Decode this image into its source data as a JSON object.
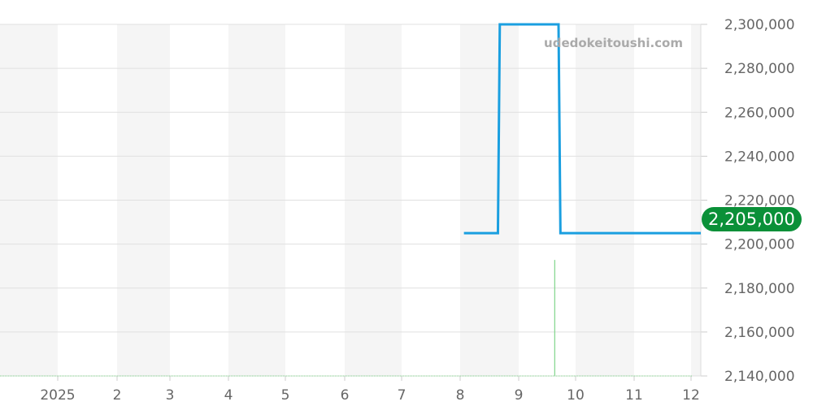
{
  "watermark": "udedokeitoushi.com",
  "current_price_label": "2,205,000",
  "chart_data": {
    "type": "line",
    "x_tick_labels": [
      "2025",
      "2",
      "3",
      "4",
      "5",
      "6",
      "7",
      "8",
      "9",
      "10",
      "11",
      "12"
    ],
    "y_tick_labels": [
      "2,300,000",
      "2,280,000",
      "2,260,000",
      "2,240,000",
      "2,220,000",
      "2,200,000",
      "2,180,000",
      "2,160,000",
      "2,140,000"
    ],
    "ylim": [
      2140000,
      2300000
    ],
    "grid": true,
    "series": [
      {
        "color": "#1a9fe0",
        "points": [
          {
            "date": "2025-08-03",
            "y": 2205000
          },
          {
            "date": "2025-08-21",
            "y": 2205000
          },
          {
            "date": "2025-08-22",
            "y": 2300000
          },
          {
            "date": "2025-09-22",
            "y": 2300000
          },
          {
            "date": "2025-09-23",
            "y": 2205000
          },
          {
            "date": "2025-12-31",
            "y": 2205000
          }
        ]
      }
    ],
    "volume": {
      "color": "#7fd48a",
      "bars": [
        {
          "date": "2025-09-20",
          "level": 0.33
        }
      ]
    },
    "current_value": 2205000,
    "current_badge_color": "#0a9038"
  }
}
